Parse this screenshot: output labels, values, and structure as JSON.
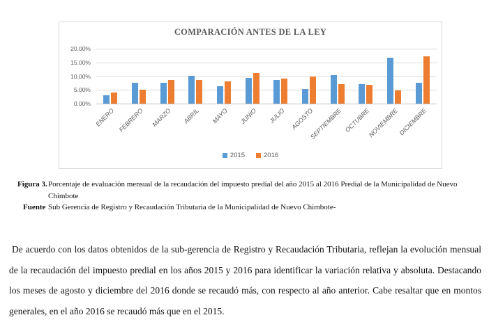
{
  "chart_data": {
    "type": "bar",
    "title": "COMPARACIÓN ANTES DE LA LEY",
    "categories": [
      "ENERO",
      "FEBRERO",
      "MARZO",
      "ABRIL",
      "MAYO",
      "JUNIO",
      "JULIO",
      "AGOSTO",
      "SEPTIEMBRE",
      "OCTUBRE",
      "NOVIEMBRE",
      "DICIEMBRE"
    ],
    "series": [
      {
        "name": "2015",
        "color": "#5B9BD5",
        "values": [
          3.0,
          7.7,
          7.7,
          10.1,
          6.3,
          9.4,
          8.5,
          5.2,
          10.4,
          7.0,
          16.8,
          7.5
        ]
      },
      {
        "name": "2016",
        "color": "#ED7D31",
        "values": [
          4.0,
          5.1,
          8.7,
          8.7,
          8.2,
          11.1,
          9.0,
          10.0,
          7.2,
          6.8,
          4.8,
          17.1
        ]
      }
    ],
    "xlabel": "",
    "ylabel": "",
    "ylim": [
      0,
      20
    ],
    "y_ticks": [
      "20.00%",
      "15.00%",
      "10.00%",
      "5.00%",
      "0.00%"
    ],
    "grid": true,
    "legend_position": "bottom",
    "gridline_color": "#d9d9d9",
    "axis_text_color": "#595959"
  },
  "caption": {
    "figure_label": "Figura 3.",
    "figure_text": "Porcentaje de evaluación mensual de la recaudación del impuesto predial del año 2015 al 2016 Predial de la Municipalidad de Nuevo Chimbote",
    "source_label": "Fuente",
    "source_text": "Sub Gerencia de Registro y Recaudación Tributaria de la Municipalidad de Nuevo Chimbote-"
  },
  "body_paragraph": "De acuerdo con los datos obtenidos de la sub-gerencia de Registro y Recaudación Tributaria, reflejan la evolución mensual de la recaudación del impuesto predial en los años 2015 y 2016 para identificar la variación relativa y absoluta. Destacando los meses de agosto y diciembre del 2016 donde se recaudó más, con respecto al año anterior. Cabe resaltar que en montos generales, en el año 2016 se recaudó más que en el 2015."
}
